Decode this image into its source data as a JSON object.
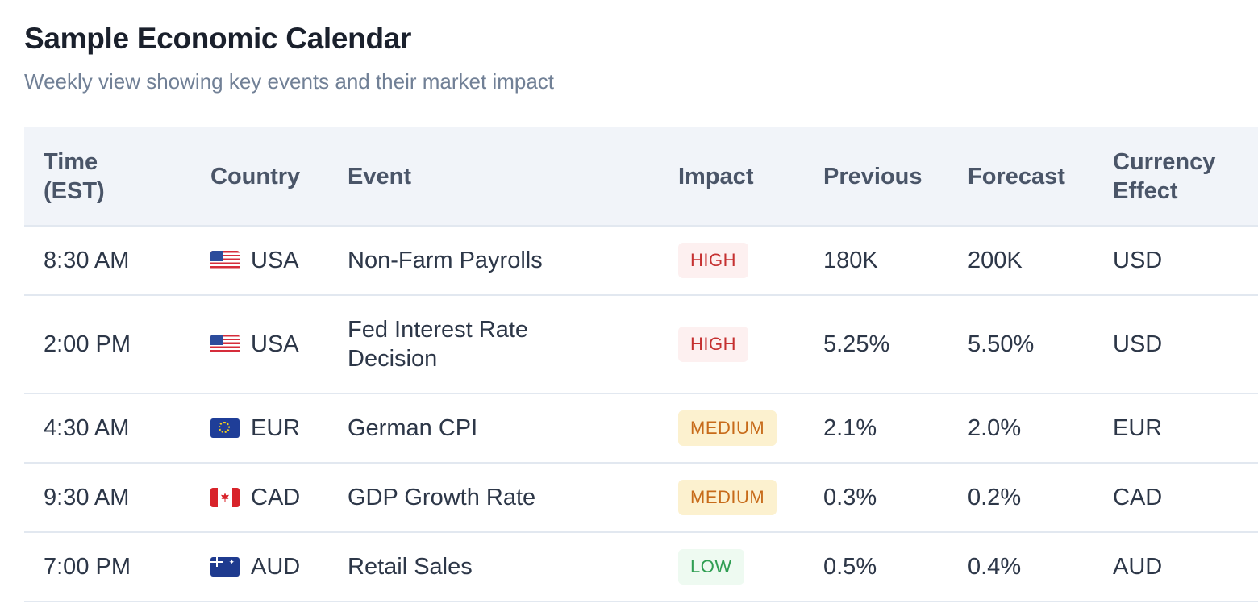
{
  "title": "Sample Economic Calendar",
  "subtitle": "Weekly view showing key events and their market impact",
  "columns": {
    "time_line1": "Time",
    "time_line2": "(EST)",
    "country": "Country",
    "event": "Event",
    "impact": "Impact",
    "previous": "Previous",
    "forecast": "Forecast",
    "currency_line1": "Currency",
    "currency_line2": "Effect"
  },
  "rows": [
    {
      "time": "8:30 AM",
      "flag": "us-flag-icon",
      "country": "USA",
      "event_line1": "Non-Farm Payrolls",
      "event_line2": "",
      "impact": "HIGH",
      "previous": "180K",
      "forecast": "200K",
      "currency": "USD"
    },
    {
      "time": "2:00 PM",
      "flag": "us-flag-icon",
      "country": "USA",
      "event_line1": "Fed Interest Rate",
      "event_line2": "Decision",
      "impact": "HIGH",
      "previous": "5.25%",
      "forecast": "5.50%",
      "currency": "USD"
    },
    {
      "time": "4:30 AM",
      "flag": "eu-flag-icon",
      "country": "EUR",
      "event_line1": "German CPI",
      "event_line2": "",
      "impact": "MEDIUM",
      "previous": "2.1%",
      "forecast": "2.0%",
      "currency": "EUR"
    },
    {
      "time": "9:30 AM",
      "flag": "ca-flag-icon",
      "country": "CAD",
      "event_line1": "GDP Growth Rate",
      "event_line2": "",
      "impact": "MEDIUM",
      "previous": "0.3%",
      "forecast": "0.2%",
      "currency": "CAD"
    },
    {
      "time": "7:00 PM",
      "flag": "au-flag-icon",
      "country": "AUD",
      "event_line1": "Retail Sales",
      "event_line2": "",
      "impact": "LOW",
      "previous": "0.5%",
      "forecast": "0.4%",
      "currency": "AUD"
    }
  ],
  "impact_colors": {
    "HIGH": {
      "bg": "#fdf0f0",
      "fg": "#c53030"
    },
    "MEDIUM": {
      "bg": "#fcf1cf",
      "fg": "#c76b1a"
    },
    "LOW": {
      "bg": "#eefaf1",
      "fg": "#2f9e52"
    }
  }
}
